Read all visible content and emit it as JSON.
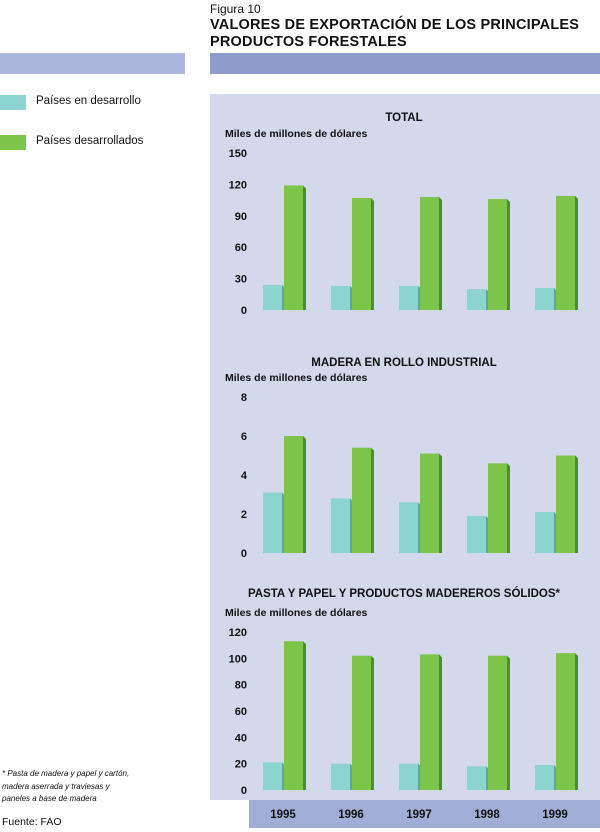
{
  "figure": {
    "label": "Figura 10",
    "title_line1": "VALORES DE EXPORTACIÓN DE LOS PRINCIPALES",
    "title_line2": "PRODUCTOS FORESTALES"
  },
  "legend": [
    {
      "label": "Países en desarrollo",
      "color": "#8dd3d0"
    },
    {
      "label": "Países desarrollados",
      "color": "#7cc44a"
    }
  ],
  "colors": {
    "developing": "#8dd3d0",
    "developed": "#7cc44a",
    "developed_shadow": "#4e8d2c",
    "developing_shadow": "#5fa6a3",
    "panel": "#d3d8ea",
    "header_left": "#adb7dd",
    "header_right": "#8d9ccb",
    "year_bar": "#a1acd7"
  },
  "chart_data": [
    {
      "type": "bar",
      "title": "TOTAL",
      "ylabel": "Miles de millones de dólares",
      "categories": [
        "1995",
        "1996",
        "1997",
        "1998",
        "1999"
      ],
      "yticks": [
        0,
        30,
        60,
        90,
        120,
        150
      ],
      "ylim": [
        0,
        150
      ],
      "grid": false,
      "series": [
        {
          "name": "Países en desarrollo",
          "values": [
            24,
            23,
            23,
            20,
            21
          ]
        },
        {
          "name": "Países desarrollados",
          "values": [
            119,
            107,
            108,
            106,
            109
          ]
        }
      ]
    },
    {
      "type": "bar",
      "title": "MADERA EN ROLLO INDUSTRIAL",
      "ylabel": "Miles de millones de dólares",
      "categories": [
        "1995",
        "1996",
        "1997",
        "1998",
        "1999"
      ],
      "yticks": [
        0,
        2,
        4,
        6,
        8
      ],
      "ylim": [
        0,
        8
      ],
      "grid": false,
      "series": [
        {
          "name": "Países en desarrollo",
          "values": [
            3.1,
            2.8,
            2.6,
            1.9,
            2.1
          ]
        },
        {
          "name": "Países desarrollados",
          "values": [
            6.0,
            5.4,
            5.1,
            4.6,
            5.0
          ]
        }
      ]
    },
    {
      "type": "bar",
      "title": "PASTA Y PAPEL Y PRODUCTOS MADEREROS SÓLIDOS*",
      "ylabel": "Miles de millones de dólares",
      "categories": [
        "1995",
        "1996",
        "1997",
        "1998",
        "1999"
      ],
      "yticks": [
        0,
        20,
        40,
        60,
        80,
        100,
        120
      ],
      "ylim": [
        0,
        120
      ],
      "grid": false,
      "series": [
        {
          "name": "Países en desarrollo",
          "values": [
            21,
            20,
            20,
            18,
            19
          ]
        },
        {
          "name": "Países desarrollados",
          "values": [
            113,
            102,
            103,
            102,
            104
          ]
        }
      ]
    }
  ],
  "footnote": {
    "line1": "* Pasta de madera y papel y cartón,",
    "line2": "madera aserrada y traviesas y",
    "line3": "paneles a base de madera"
  },
  "source": "Fuente: FAO"
}
